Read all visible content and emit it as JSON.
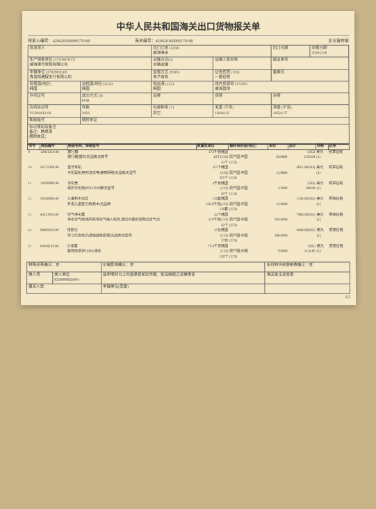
{
  "title": "中华人民共和国海关出口货物报关单",
  "copy_type": "企业留存联",
  "pre_entry_no": "预录入编号：420420160000270160",
  "customs_no": "海关编号：420420160000270160",
  "header": {
    "consignor_lbl": "收发货人",
    "consignor": "",
    "export_port_lbl": "出口口岸 (4204)",
    "export_port": "威海海关",
    "export_date_lbl": "出口日期",
    "export_date": "",
    "declare_date_lbl": "申报日期",
    "declare_date": "20161226",
    "producer_lbl": "生产销售单位 (3710967817)",
    "producer": "威海港华贸易有限公司",
    "transport_mode_lbl": "运输方式(2)",
    "transport_mode": "水路运输",
    "transport_tool_lbl": "运输工具名称",
    "transport_tool": "",
    "bill_no_lbl": "提运单号",
    "bill_no": "",
    "declarer_lbl": "申报单位    (3702983618)",
    "declarer": "青岛翔通报关行有限公司",
    "supervision_lbl": "监管方式    (9610)",
    "supervision": "电子商务",
    "exemption_lbl": "征免性质 (101)",
    "exemption": "一般征税",
    "remark_lbl": "备案号",
    "remark": "",
    "trade_country_lbl": "贸易国(地区)",
    "trade_country": "韩国",
    "dest_country_lbl": "运抵国(地区)",
    "dest_country_code": "(133)",
    "dest_country": "韩国",
    "dest_port_lbl": "指运港    (133)",
    "dest_port": "韩国",
    "origin_lbl": "境内货源地 (37109)",
    "origin": "威海其他",
    "license_lbl": "许可证号",
    "license": "",
    "deal_mode_lbl": "成交方式 (3)",
    "deal_mode": "FOB",
    "freight_lbl": "运费",
    "insurance_lbl": "保费",
    "misc_lbl": "杂费",
    "contract_lbl": "合同协议号",
    "contract": "YC201612-01",
    "pieces_lbl": "件数",
    "pieces": "3456",
    "pack_lbl": "包装种类 (7)",
    "pack": "其它",
    "gross_lbl": "毛重 (千克)",
    "gross": "18264.15",
    "net_lbl": "净重 (千克)",
    "net": "14524.77",
    "container_lbl": "集装箱号",
    "attach_lbl": "随附单证"
  },
  "marks_lbl": "标记唛码及备注",
  "marks": "备注：跨境清\n随附单证；",
  "goods_hdr": {
    "no": "项号",
    "code": "商品编号",
    "name": "商品名称、规格型号",
    "qty": "数量及单位",
    "dest": "最终目的国(地区)",
    "price": "单价",
    "total": "总价",
    "curr": "币制",
    "tax": "征免"
  },
  "goods": [
    {
      "no": "9",
      "code": "42021210.00",
      "name": "旅行箱",
      "spec": "旅行箱|塑料|无品牌|无款号",
      "q1": "172千克韩国",
      "q2": "43个(133)",
      "q3": "43个",
      "dest": "原产国:中国",
      "dest2": "(133)",
      "p": "50.0000",
      "t": "(502)",
      "t2": "2150.00",
      "c": "美元",
      "c2": "(1)",
      "tax": "照章征税"
    },
    {
      "no": "10",
      "code": "85176294.00",
      "name": "蓝牙耳机",
      "spec": "手机耳机用|听音乐等|蜂窝网络|无品牌|无型号",
      "q1": "355个韩国",
      "q2": "(133)",
      "q3": "355个",
      "dest": "原产国:中国",
      "dest2": "(133)",
      "p": "13.0000",
      "t": "4615.00(502)",
      "t2": "",
      "c": "美元",
      "c2": "(1)",
      "tax": "照章征税"
    },
    {
      "no": "11",
      "code": "39269090.90",
      "name": "手机壳",
      "spec": "保护手机用|PP|CONN牌|无型号",
      "q1": "4千克韩国",
      "q2": "(133)",
      "q3": "40个",
      "dest": "原产国:中国",
      "dest2": "(133)",
      "p": "4.5000",
      "t": "(502)",
      "t2": "180.00",
      "c": "美元",
      "c2": "(1)",
      "tax": "照章征税"
    },
    {
      "no": "12",
      "code": "95030060.00",
      "name": "儿童积木玩具",
      "spec": "开发儿童智力用|积木|无品牌",
      "q1": "116套韩国",
      "q2": "150.8千克(133)",
      "q3": "116套",
      "dest": "原产国:中国",
      "dest2": "(133)",
      "p": "10.0000",
      "t": "1160.00(502)",
      "t2": "",
      "c": "美元",
      "c2": "(1)",
      "tax": "照章征税"
    },
    {
      "no": "13",
      "code": "84213910.00",
      "name": "空气净化器",
      "spec": "净化空气用|用风机将空气抽入机内,通过内置的滤网过滤气|无",
      "q1": "42个韩国",
      "q2": "210千克(133)",
      "q3": "42个",
      "dest": "原产国:中国",
      "dest2": "(133)",
      "p": "190.0000",
      "t": "7980.00(502)",
      "t2": "",
      "c": "美元",
      "c2": "(1)",
      "tax": "照章征税"
    },
    {
      "no": "14",
      "code": "90085039.00",
      "name": "投影仪",
      "spec": "学习交流用|凸透镜成像原理|无品牌|无型号",
      "q1": "37台韩国",
      "q2": "(133)",
      "q3": "37台",
      "dest": "原产国:中国",
      "dest2": "(133)",
      "p": "180.0000",
      "t": "6660.00(502)",
      "t2": "",
      "c": "美元",
      "c2": "(1)",
      "tax": "照章征税"
    },
    {
      "no": "15",
      "code": "63049129.00",
      "name": "沙发套",
      "spec": "装饰用|机织|100%涤纶",
      "q1": "75.6千克韩国",
      "q2": "(133)",
      "q3": "126个",
      "dest": "原产国:中国",
      "dest2": "(133)",
      "p": "9.0000",
      "t": "(502)",
      "t2": "1134.00",
      "c": "美元",
      "c2": "(1)",
      "tax": "照章征税"
    }
  ],
  "footer": {
    "special_lbl": "特殊关系确认：否",
    "price_lbl": "价格影响确认：否",
    "pay_lbl": "支付特许权使用费确认：否",
    "entry_person_lbl": "录入员",
    "entry_unit_lbl": "录入单位",
    "entry_unit": "8320000026694",
    "declaration": "兹申明对以上内容承担如实申报、依法纳税之法律责任",
    "customs_sign_lbl": "海关批注及签章",
    "declare_unit_lbl": "申报单位(签章)",
    "clerk_lbl": "报关人员"
  },
  "page": "2/2"
}
